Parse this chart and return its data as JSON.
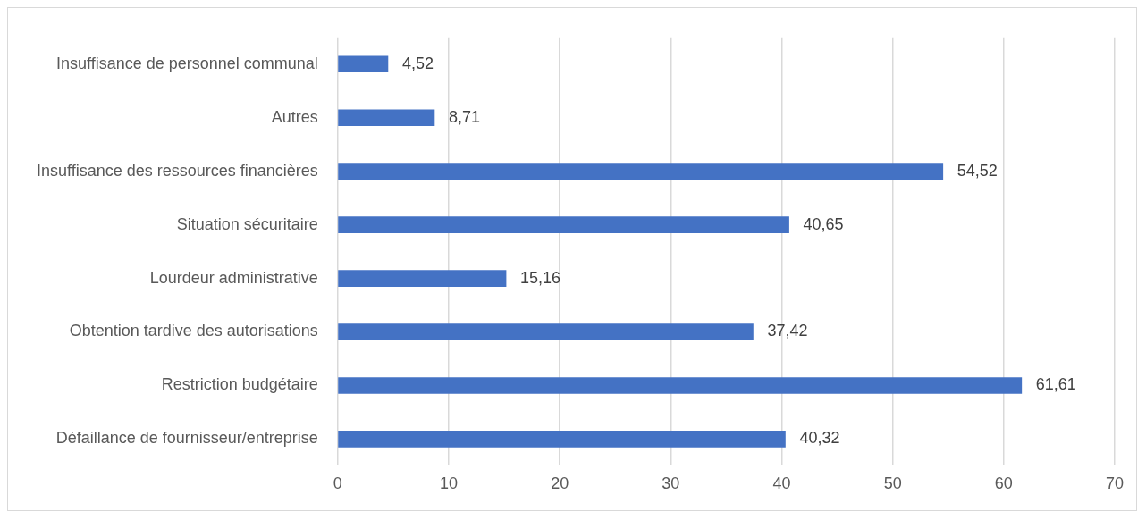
{
  "chart_data": {
    "type": "bar",
    "orientation": "horizontal",
    "categories": [
      "Insuffisance de personnel communal",
      "Autres",
      "Insuffisance des ressources financières",
      "Situation sécuritaire",
      "Lourdeur administrative",
      "Obtention tardive des autorisations",
      "Restriction budgétaire",
      "Défaillance de fournisseur/entreprise"
    ],
    "values": [
      4.52,
      8.71,
      54.52,
      40.65,
      15.16,
      37.42,
      61.61,
      40.32
    ],
    "value_labels": [
      "4,52",
      "8,71",
      "54,52",
      "40,65",
      "15,16",
      "37,42",
      "61,61",
      "40,32"
    ],
    "color": "#4472c4",
    "xlim": [
      0,
      70
    ],
    "xticks": [
      0,
      10,
      20,
      30,
      40,
      50,
      60,
      70
    ],
    "grid": "x",
    "legend": false
  }
}
